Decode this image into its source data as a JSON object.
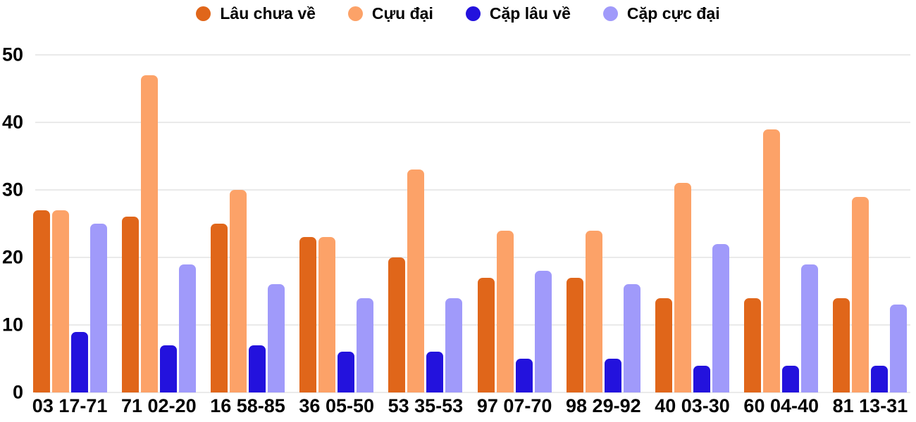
{
  "chart_data": {
    "type": "bar",
    "title": "",
    "categories": [
      "03 17-71",
      "71 02-20",
      "16 58-85",
      "36 05-50",
      "53 35-53",
      "97 07-70",
      "98 29-92",
      "40 03-30",
      "60 04-40",
      "81 13-31"
    ],
    "series": [
      {
        "id": "lau-chua-ve",
        "name": "Lâu chưa về",
        "color": "#E0661A",
        "values": [
          27,
          26,
          25,
          23,
          20,
          17,
          17,
          14,
          14,
          14
        ]
      },
      {
        "id": "cuu-dai",
        "name": "Cựu đại",
        "color": "#FCA268",
        "values": [
          27,
          47,
          30,
          23,
          33,
          24,
          24,
          31,
          39,
          29
        ]
      },
      {
        "id": "cap-lau-ve",
        "name": "Cặp lâu về",
        "color": "#2312DD",
        "values": [
          9,
          7,
          7,
          6,
          6,
          5,
          5,
          4,
          4,
          4
        ]
      },
      {
        "id": "cap-cuc-dai",
        "name": "Cặp cực đại",
        "color": "#A09AFA",
        "values": [
          25,
          19,
          16,
          14,
          14,
          18,
          16,
          22,
          19,
          13
        ]
      }
    ],
    "yticks": [
      0,
      10,
      20,
      30,
      40,
      50
    ],
    "ylim": [
      0,
      50
    ],
    "grid": true,
    "legend_position": "top"
  },
  "colors": {
    "grid": "#EAEAEA",
    "text": "#000000",
    "background": "#FFFFFF"
  }
}
